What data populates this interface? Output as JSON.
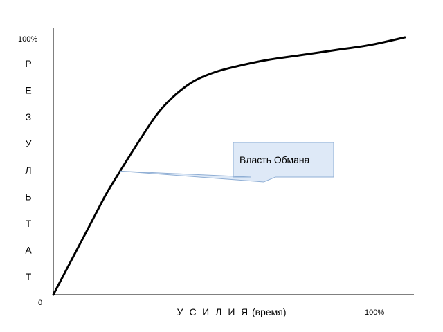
{
  "chart_data": {
    "type": "line",
    "x_axis": {
      "label_letters": [
        "У",
        "С",
        "И",
        "Л",
        "И",
        "Я"
      ],
      "label_suffix": "(время)",
      "min_label": "0",
      "max_label": "100%",
      "range": [
        0,
        100
      ]
    },
    "y_axis": {
      "label_letters": [
        "Р",
        "Е",
        "З",
        "У",
        "Л",
        "Ь",
        "Т",
        "А",
        "Т"
      ],
      "max_label": "100%",
      "range": [
        0,
        100
      ]
    },
    "series": [
      {
        "x": [
          0,
          5,
          10,
          15,
          19,
          25,
          30,
          35,
          40,
          45,
          50,
          60,
          70,
          80,
          90,
          100
        ],
        "y": [
          0,
          13,
          26,
          39,
          48,
          61,
          71,
          78,
          83,
          86,
          88,
          91,
          93,
          95,
          97,
          100
        ]
      }
    ],
    "annotations": [
      {
        "text": "Власть Обмана",
        "points_to": {
          "x": 19,
          "y": 48
        }
      }
    ],
    "grid": false,
    "colors": {
      "line": "#000000",
      "callout_fill": "#dee9f7",
      "callout_stroke": "#8faed4",
      "axis": "#000000"
    }
  }
}
